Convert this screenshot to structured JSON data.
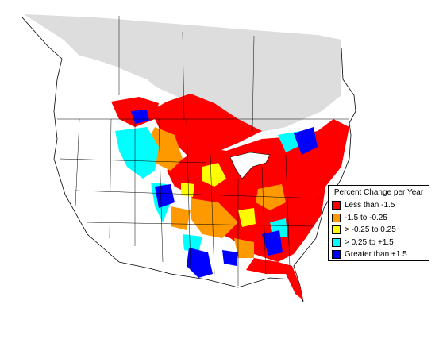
{
  "legend": {
    "title": "Percent Change per Year",
    "items": [
      {
        "label": "Less than -1.5",
        "color": "#ff0000"
      },
      {
        "label": "-1.5 to -0.25",
        "color": "#ff9900"
      },
      {
        "label": "> -0.25 to 0.25",
        "color": "#ffff00"
      },
      {
        "label": "> 0.25 to +1.5",
        "color": "#00ffff"
      },
      {
        "label": "Greater than +1.5",
        "color": "#0000ff"
      }
    ]
  },
  "colors": {
    "no_data_shaded": "#dddddd",
    "outline": "#000000",
    "background": "#ffffff"
  }
}
